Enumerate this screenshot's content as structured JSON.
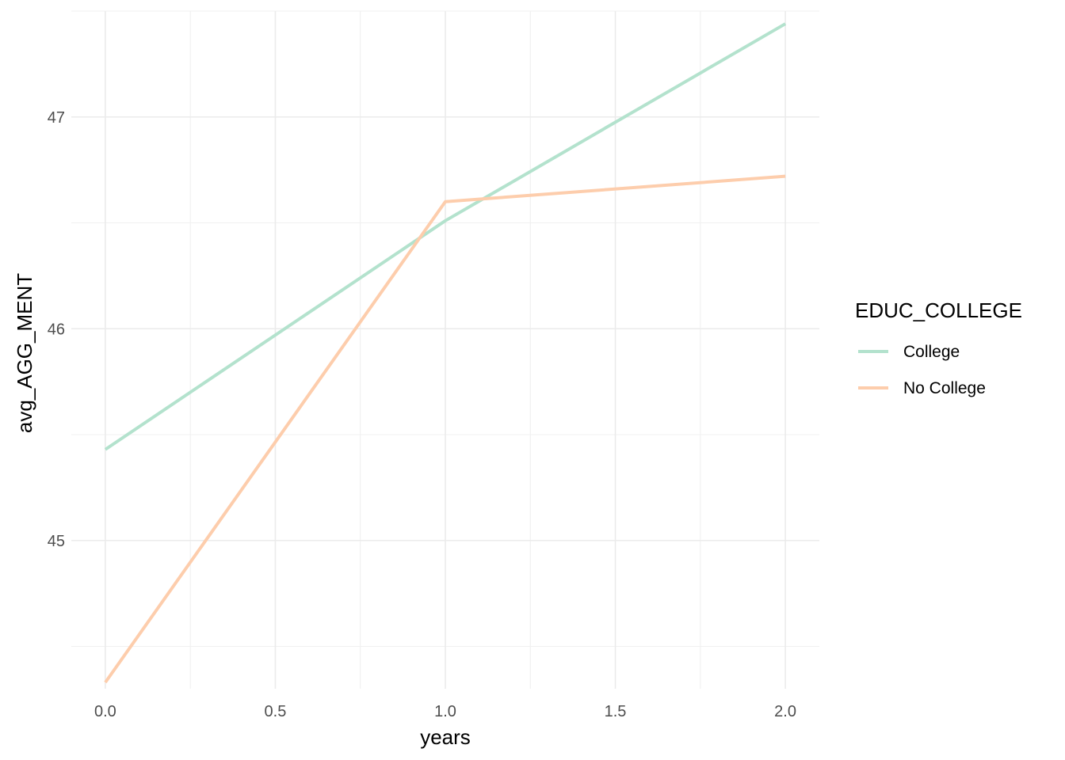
{
  "chart_data": {
    "type": "line",
    "xlabel": "years",
    "ylabel": "avg_AGG_MENT",
    "x": [
      0,
      1,
      2
    ],
    "xlim": [
      -0.1,
      2.1
    ],
    "ylim": [
      44.3,
      47.5
    ],
    "x_ticks": [
      0.0,
      0.5,
      1.0,
      1.5,
      2.0
    ],
    "x_tick_labels": [
      "0.0",
      "0.5",
      "1.0",
      "1.5",
      "2.0"
    ],
    "y_ticks": [
      45,
      46,
      47
    ],
    "y_tick_labels": [
      "45",
      "46",
      "47"
    ],
    "grid": true,
    "legend": {
      "title": "EDUC_COLLEGE",
      "position": "right"
    },
    "series": [
      {
        "name": "College",
        "color": "#b3e2cd",
        "values": [
          45.43,
          46.51,
          47.44
        ]
      },
      {
        "name": "No College",
        "color": "#fdcdac",
        "values": [
          44.33,
          46.6,
          46.72
        ]
      }
    ]
  }
}
